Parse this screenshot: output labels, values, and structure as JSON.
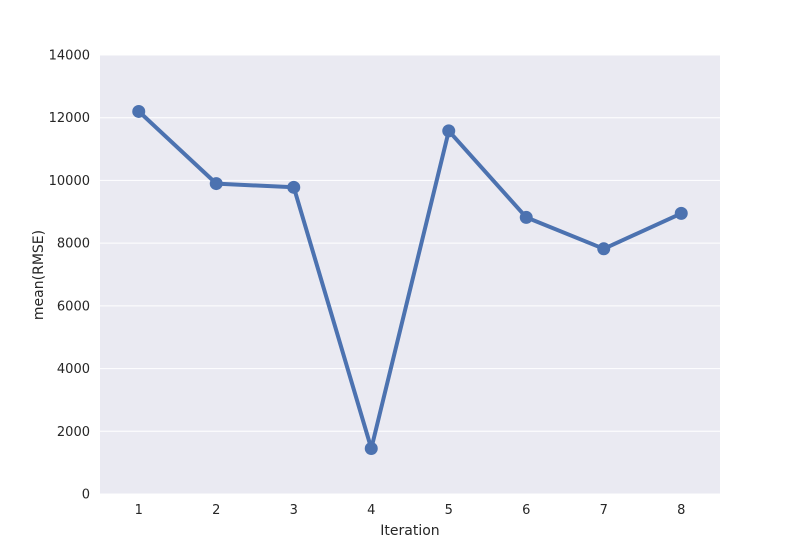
{
  "chart_data": {
    "type": "line",
    "xlabel": "Iteration",
    "ylabel": "mean(RMSE)",
    "categories": [
      "1",
      "2",
      "3",
      "4",
      "5",
      "6",
      "7",
      "8"
    ],
    "yticks": [
      "0",
      "2000",
      "4000",
      "6000",
      "8000",
      "10000",
      "12000",
      "14000"
    ],
    "ylim": [
      0,
      14000
    ],
    "grid": true,
    "series": [
      {
        "values": [
          12200,
          9900,
          9780,
          1450,
          11580,
          8820,
          7820,
          8950
        ],
        "color": "#4c72b0"
      }
    ]
  }
}
